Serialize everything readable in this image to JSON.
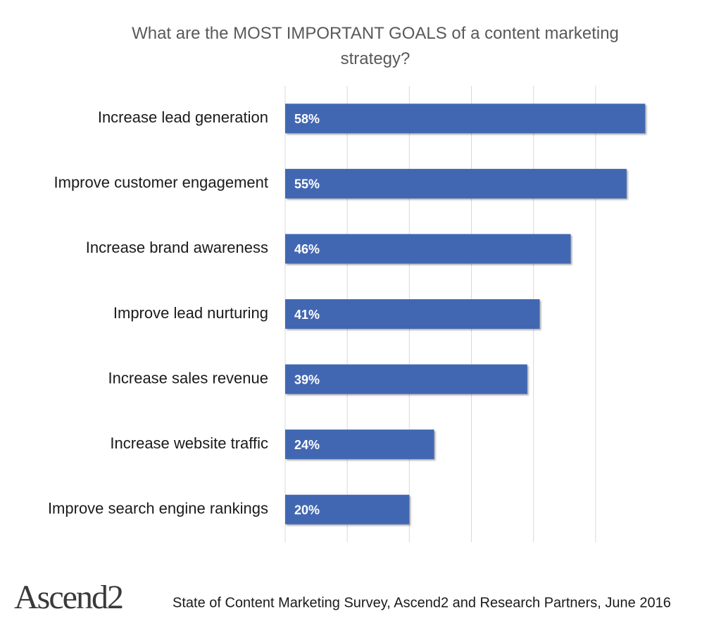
{
  "chart_data": {
    "type": "bar",
    "orientation": "horizontal",
    "title": "What are the MOST IMPORTANT GOALS of a content marketing strategy?",
    "categories": [
      "Increase lead generation",
      "Improve customer engagement",
      "Increase brand awareness",
      "Improve lead nurturing",
      "Increase sales revenue",
      "Increase website traffic",
      "Improve search engine rankings"
    ],
    "values": [
      58,
      55,
      46,
      41,
      39,
      24,
      20
    ],
    "value_labels": [
      "58%",
      "55%",
      "46%",
      "41%",
      "39%",
      "24%",
      "20%"
    ],
    "color": "#4267b2",
    "xlim": [
      0,
      60
    ],
    "xticks": [
      0,
      10,
      20,
      30,
      40,
      50
    ],
    "grid": true,
    "logo": "Ascend2",
    "source": "State of Content Marketing Survey, Ascend2 and Research Partners, June 2016"
  }
}
